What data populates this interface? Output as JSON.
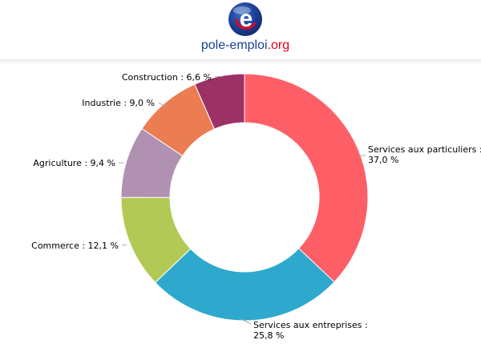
{
  "brand": {
    "name_main": "pole-emploi",
    "name_suffix": ".org",
    "logo_letter": "e",
    "colors": {
      "blue": "#1c3f94",
      "red": "#e3001b"
    }
  },
  "chart_data": {
    "type": "pie",
    "donut": true,
    "unit": "%",
    "slices": [
      {
        "label": "Services aux particuliers",
        "value": 37.0,
        "text": "Services aux particuliers :",
        "text2": "37,0 %",
        "color": "#fe5f67"
      },
      {
        "label": "Services aux entreprises",
        "value": 25.8,
        "text": "Services aux entreprises :",
        "text2": "25,8 %",
        "color": "#2ea9cd"
      },
      {
        "label": "Commerce",
        "value": 12.1,
        "text": "Commerce : 12,1 %",
        "text2": "",
        "color": "#b2ca55"
      },
      {
        "label": "Agriculture",
        "value": 9.4,
        "text": "Agriculture : 9,4 %",
        "text2": "",
        "color": "#b191b1"
      },
      {
        "label": "Industrie",
        "value": 9.0,
        "text": "Industrie : 9,0 %",
        "text2": "",
        "color": "#ec7c52"
      },
      {
        "label": "Construction",
        "value": 6.6,
        "text": "Construction : 6,6 %",
        "text2": "",
        "color": "#9b3164"
      }
    ]
  }
}
